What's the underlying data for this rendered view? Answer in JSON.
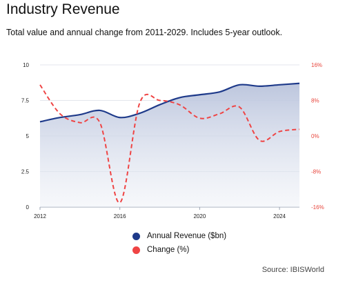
{
  "header": {
    "title": "Industry Revenue",
    "subtitle": "Total value and annual change from 2011-2029. Includes 5-year outlook."
  },
  "legend": {
    "items": [
      {
        "label": "Annual Revenue ($bn)",
        "color": "#1e3a8a"
      },
      {
        "label": "Change (%)",
        "color": "#ef4444"
      }
    ]
  },
  "source": "Source: IBISWorld",
  "chart_data": {
    "type": "line",
    "x": [
      2012,
      2013,
      2014,
      2015,
      2016,
      2017,
      2018,
      2019,
      2020,
      2021,
      2022,
      2023,
      2024,
      2025
    ],
    "x_ticks": [
      "2012",
      "2016",
      "2020",
      "2024"
    ],
    "xlim": [
      2012,
      2025
    ],
    "series": [
      {
        "name": "Annual Revenue ($bn)",
        "axis": "left",
        "style": "solid-area",
        "color": "#1e3a8a",
        "values": [
          6.0,
          6.3,
          6.5,
          6.8,
          6.3,
          6.6,
          7.2,
          7.7,
          7.9,
          8.1,
          8.6,
          8.5,
          8.6,
          8.7
        ]
      },
      {
        "name": "Change (%)",
        "axis": "right",
        "style": "dashed",
        "color": "#ef4444",
        "values": [
          11.5,
          5.0,
          3.0,
          3.0,
          -15.0,
          7.5,
          8.0,
          7.0,
          4.0,
          5.0,
          6.5,
          -1.0,
          1.0,
          1.5
        ]
      }
    ],
    "y_left": {
      "lim": [
        0,
        10
      ],
      "ticks": [
        "0",
        "2.5",
        "5",
        "7.5",
        "10"
      ]
    },
    "y_right": {
      "lim": [
        -16,
        16
      ],
      "ticks": [
        "-16%",
        "-8%",
        "0%",
        "8%",
        "16%"
      ]
    },
    "grid": "horizontal",
    "legend_position": "bottom-center"
  }
}
